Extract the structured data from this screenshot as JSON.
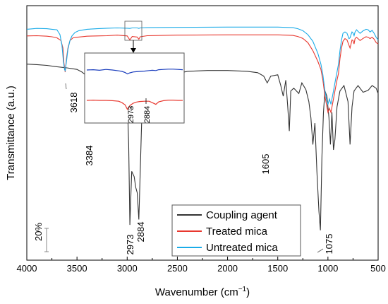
{
  "chart_data": {
    "type": "line",
    "xlabel": "Wavenumber (cm",
    "xlabel_sup": "−1",
    "xlabel_suffix": ")",
    "ylabel": "Transmittance (a.u.)",
    "xlim": [
      4000,
      500
    ],
    "x_ticks": [
      "4000",
      "3500",
      "3000",
      "2500",
      "2000",
      "1500",
      "1000",
      "500"
    ],
    "x_tick_values": [
      4000,
      3500,
      3000,
      2500,
      2000,
      1500,
      1000,
      500
    ],
    "scale_bar_label": "20%",
    "legend_position": "bottom-right",
    "series": [
      {
        "name": "Coupling agent",
        "color": "#333333",
        "x": [
          4000,
          3900,
          3800,
          3700,
          3600,
          3500,
          3450,
          3384,
          3330,
          3250,
          3150,
          3100,
          3050,
          3000,
          2985,
          2973,
          2955,
          2930,
          2915,
          2900,
          2884,
          2870,
          2850,
          2820,
          2780,
          2700,
          2600,
          2500,
          2400,
          2200,
          2000,
          1800,
          1700,
          1640,
          1605,
          1570,
          1500,
          1470,
          1445,
          1420,
          1400,
          1385,
          1370,
          1340,
          1290,
          1260,
          1220,
          1190,
          1170,
          1150,
          1130,
          1110,
          1090,
          1075,
          1060,
          1045,
          1030,
          1010,
          990,
          975,
          960,
          945,
          930,
          910,
          880,
          840,
          800,
          780,
          760,
          740,
          700,
          650,
          600,
          560,
          520,
          500
        ],
        "y": [
          90.0,
          89.8,
          89.5,
          89.0,
          88.6,
          88.0,
          87.0,
          85.0,
          87.4,
          87.8,
          87.4,
          87.0,
          85.0,
          78.0,
          60.0,
          30.0,
          50.0,
          48.0,
          44.0,
          42.0,
          32.0,
          50.0,
          76.0,
          78.0,
          80.0,
          83.0,
          85.0,
          86.5,
          87.3,
          87.6,
          87.6,
          87.3,
          86.8,
          85.5,
          83.0,
          85.5,
          86.0,
          82.0,
          78.0,
          84.0,
          74.0,
          65.0,
          80.0,
          81.0,
          79.0,
          83.0,
          80.5,
          76.0,
          70.0,
          60.0,
          68.0,
          50.0,
          35.0,
          28.0,
          55.0,
          72.0,
          80.0,
          78.0,
          70.0,
          60.0,
          72.0,
          58.0,
          62.0,
          74.0,
          80.0,
          82.0,
          76.0,
          60.0,
          74.0,
          80.0,
          82.0,
          79.5,
          80.2,
          82.0,
          81.0,
          79.0
        ]
      },
      {
        "name": "Treated mica",
        "color": "#e8382f",
        "x": [
          4000,
          3900,
          3800,
          3750,
          3700,
          3660,
          3640,
          3630,
          3618,
          3605,
          3590,
          3570,
          3540,
          3500,
          3400,
          3300,
          3200,
          3100,
          3000,
          2973,
          2950,
          2900,
          2884,
          2870,
          2800,
          2500,
          2000,
          1500,
          1350,
          1300,
          1250,
          1200,
          1150,
          1100,
          1070,
          1050,
          1030,
          1010,
          1000,
          985,
          970,
          955,
          940,
          925,
          910,
          895,
          880,
          865,
          850,
          830,
          810,
          800,
          790,
          780,
          770,
          760,
          750,
          740,
          730,
          715,
          700,
          680,
          650,
          620,
          600,
          580,
          560,
          540,
          520,
          500
        ],
        "y": [
          100.5,
          100.6,
          100.4,
          100.2,
          99.8,
          98.8,
          96.0,
          90.5,
          87.0,
          92.0,
          96.0,
          98.8,
          99.8,
          100.0,
          100.4,
          100.5,
          100.6,
          100.8,
          100.5,
          99.0,
          100.3,
          100.1,
          99.3,
          100.2,
          100.6,
          100.8,
          100.9,
          100.9,
          100.7,
          100.3,
          99.6,
          98.0,
          95.0,
          91.0,
          88.0,
          84.0,
          78.0,
          74.0,
          72.0,
          73.5,
          72.0,
          75.0,
          78.0,
          81.0,
          84.0,
          86.5,
          92.0,
          96.0,
          98.5,
          99.5,
          99.0,
          98.0,
          97.0,
          96.0,
          97.5,
          99.0,
          98.8,
          97.5,
          99.5,
          100.0,
          99.5,
          98.8,
          99.6,
          100.2,
          100.0,
          99.5,
          100.0,
          99.3,
          98.0,
          97.5
        ]
      },
      {
        "name": "Untreated mica",
        "color": "#1aabe8",
        "x": [
          4000,
          3900,
          3800,
          3750,
          3700,
          3670,
          3650,
          3635,
          3625,
          3618,
          3605,
          3590,
          3570,
          3550,
          3520,
          3480,
          3400,
          3300,
          3200,
          3100,
          3000,
          2973,
          2950,
          2900,
          2884,
          2870,
          2800,
          2500,
          2000,
          1500,
          1350,
          1300,
          1250,
          1200,
          1150,
          1100,
          1070,
          1050,
          1030,
          1010,
          1000,
          985,
          970,
          955,
          940,
          925,
          910,
          895,
          880,
          865,
          850,
          830,
          810,
          800,
          790,
          780,
          770,
          760,
          750,
          740,
          730,
          715,
          700,
          680,
          650,
          620,
          600,
          580,
          560,
          540,
          520,
          500
        ],
        "y": [
          103.0,
          103.3,
          103.2,
          103.0,
          102.8,
          101.0,
          97.0,
          91.0,
          88.0,
          87.5,
          91.0,
          95.5,
          98.8,
          100.5,
          101.8,
          102.5,
          103.0,
          103.2,
          103.4,
          103.5,
          103.4,
          103.3,
          103.5,
          103.5,
          103.3,
          103.5,
          103.6,
          103.7,
          103.8,
          103.8,
          103.6,
          103.2,
          102.5,
          101.0,
          98.5,
          94.0,
          90.0,
          86.0,
          80.0,
          76.0,
          75.0,
          77.0,
          75.0,
          78.0,
          81.0,
          84.0,
          87.0,
          90.0,
          95.0,
          99.0,
          101.5,
          102.0,
          101.5,
          100.5,
          99.5,
          99.8,
          101.0,
          102.0,
          101.6,
          100.6,
          102.0,
          102.8,
          102.2,
          101.5,
          102.4,
          103.0,
          102.8,
          102.0,
          102.6,
          101.5,
          100.0,
          99.0
        ]
      }
    ],
    "peak_labels": [
      "3618",
      "3384",
      "2973",
      "2884",
      "1605",
      "1075"
    ],
    "inset": {
      "x_range": [
        3100,
        2800
      ],
      "peak_labels": [
        "2973",
        "2884"
      ],
      "series": [
        {
          "name": "Untreated mica",
          "color": "#1a3dbd",
          "x": [
            3100,
            3080,
            3060,
            3040,
            3020,
            3000,
            2990,
            2980,
            2973,
            2965,
            2955,
            2945,
            2935,
            2920,
            2905,
            2895,
            2884,
            2875,
            2860,
            2845,
            2830,
            2815,
            2800
          ],
          "y": [
            0.0,
            0.1,
            -0.1,
            0.2,
            0.0,
            -0.3,
            -0.5,
            -0.9,
            -1.4,
            -1.0,
            -0.7,
            -0.6,
            -0.5,
            -0.4,
            -0.2,
            -0.1,
            -0.2,
            0.1,
            0.2,
            0.3,
            0.3,
            0.2,
            0.1
          ]
        },
        {
          "name": "Treated mica",
          "color": "#e8382f",
          "x": [
            3100,
            3080,
            3060,
            3040,
            3020,
            3000,
            2990,
            2980,
            2973,
            2965,
            2955,
            2945,
            2935,
            2920,
            2905,
            2895,
            2884,
            2875,
            2860,
            2845,
            2830,
            2815,
            2800
          ],
          "y": [
            0.0,
            0.1,
            0.0,
            0.0,
            -0.1,
            -0.3,
            -0.8,
            -1.6,
            -3.2,
            -1.8,
            -1.0,
            -0.6,
            -0.4,
            -0.3,
            -0.3,
            -0.8,
            -1.4,
            -0.5,
            -0.1,
            0.1,
            0.1,
            0.0,
            0.0
          ]
        }
      ]
    }
  }
}
